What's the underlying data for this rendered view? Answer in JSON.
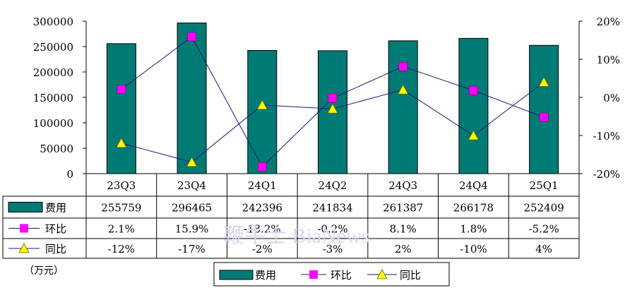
{
  "chart_data": {
    "type": "bar",
    "categories": [
      "23Q3",
      "23Q4",
      "24Q1",
      "24Q2",
      "24Q3",
      "24Q4",
      "25Q1"
    ],
    "left_axis": {
      "ylim": [
        0,
        300000
      ],
      "ticks": [
        "0",
        "50000",
        "100000",
        "150000",
        "200000",
        "250000",
        "300000"
      ]
    },
    "right_axis": {
      "ylim": [
        -20,
        20
      ],
      "unit": "%",
      "ticks": [
        "-20%",
        "-10%",
        "0%",
        "10%",
        "20%"
      ]
    },
    "series": [
      {
        "name": "费用",
        "kind": "bar",
        "axis": "left",
        "color": "#007a74",
        "values": [
          255759,
          296465,
          242396,
          241834,
          261387,
          266178,
          252409
        ]
      },
      {
        "name": "环比",
        "kind": "line",
        "axis": "right",
        "marker": "square",
        "color": "#ff00ff",
        "line_color": "#1a1a80",
        "values": [
          2.1,
          15.9,
          -18.2,
          -0.2,
          8.1,
          1.8,
          -5.2
        ]
      },
      {
        "name": "同比",
        "kind": "line",
        "axis": "right",
        "marker": "triangle",
        "color": "#ffff00",
        "line_color": "#1a1a80",
        "values": [
          -12,
          -17,
          -2,
          -3,
          2,
          -10,
          4
        ]
      }
    ],
    "table": {
      "rows": [
        {
          "label": "费用",
          "cells": [
            "255759",
            "296465",
            "242396",
            "241834",
            "261387",
            "266178",
            "252409"
          ]
        },
        {
          "label": "环比",
          "cells": [
            "2.1%",
            "15.9%",
            "-18.2%",
            "-0.2%",
            "8.1%",
            "1.8%",
            "-5.2%"
          ]
        },
        {
          "label": "同比",
          "cells": [
            "-12%",
            "-17%",
            "-2%",
            "-3%",
            "2%",
            "-10%",
            "4%"
          ]
        }
      ]
    },
    "unit_label": "（万元）",
    "legend": {
      "placement": "bottom",
      "items": [
        "费用",
        "环比",
        "同比"
      ]
    },
    "watermark": "鞭牛士 BiaNews",
    "grid": false
  }
}
